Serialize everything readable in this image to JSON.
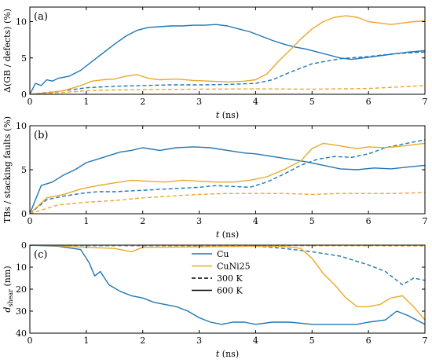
{
  "colors": {
    "Cu": "#1f77b4",
    "CuNi25": "#e8a92b"
  },
  "legend": {
    "items": [
      {
        "label": "Cu",
        "style": "color-Cu"
      },
      {
        "label": "CuNi25",
        "style": "color-CuNi25"
      },
      {
        "label": "300 K",
        "style": "dashed"
      },
      {
        "label": "600 K",
        "style": "solid"
      }
    ],
    "placement": "bottom-panel-center"
  },
  "chart_data": [
    {
      "type": "line",
      "panel_label": "(a)",
      "xlabel_var": "t",
      "xlabel_unit": " (ns)",
      "ylabel": "Δ(GB / defects) (%)",
      "xlim": [
        0,
        7
      ],
      "ylim": [
        0,
        12
      ],
      "invert_y": false,
      "xticks": [
        "0",
        "1",
        "2",
        "3",
        "4",
        "5",
        "6",
        "7"
      ],
      "yticks": [
        {
          "v": 0,
          "t": "0"
        },
        {
          "v": 5,
          "t": "5"
        },
        {
          "v": 10,
          "t": "10"
        }
      ],
      "series": [
        {
          "material": "Cu",
          "temp": "600 K",
          "x": [
            0,
            0.1,
            0.2,
            0.3,
            0.4,
            0.5,
            0.7,
            0.9,
            1.1,
            1.3,
            1.5,
            1.7,
            1.9,
            2.1,
            2.3,
            2.5,
            2.7,
            2.9,
            3.1,
            3.3,
            3.5,
            3.7,
            3.9,
            4.1,
            4.3,
            4.5,
            4.7,
            4.9,
            5.1,
            5.3,
            5.5,
            5.7,
            5.9,
            6.1,
            6.3,
            6.5,
            6.7,
            7.0
          ],
          "y": [
            0,
            1.5,
            1.2,
            2.0,
            1.8,
            2.2,
            2.5,
            3.3,
            4.5,
            5.7,
            6.9,
            8.0,
            8.8,
            9.2,
            9.3,
            9.4,
            9.4,
            9.5,
            9.5,
            9.6,
            9.4,
            9.0,
            8.6,
            8.0,
            7.4,
            6.9,
            6.5,
            6.2,
            5.8,
            5.4,
            5.0,
            4.8,
            5.0,
            5.2,
            5.4,
            5.6,
            5.8,
            6.0
          ]
        },
        {
          "material": "CuNi25",
          "temp": "600 K",
          "x": [
            0,
            0.3,
            0.6,
            0.9,
            1.1,
            1.3,
            1.5,
            1.7,
            1.9,
            2.1,
            2.3,
            2.6,
            2.9,
            3.2,
            3.5,
            3.8,
            4.0,
            4.2,
            4.4,
            4.6,
            4.8,
            5.0,
            5.2,
            5.4,
            5.6,
            5.8,
            6.0,
            6.2,
            6.4,
            6.6,
            6.8,
            7.0
          ],
          "y": [
            0,
            0.2,
            0.5,
            1.2,
            1.8,
            2.0,
            2.1,
            2.5,
            2.7,
            2.2,
            2.0,
            2.1,
            1.9,
            1.8,
            1.7,
            1.8,
            2.0,
            2.8,
            4.5,
            6.0,
            7.6,
            9.0,
            10.0,
            10.6,
            10.8,
            10.6,
            10.0,
            9.8,
            9.6,
            9.8,
            10.0,
            10.1
          ]
        },
        {
          "material": "Cu",
          "temp": "300 K",
          "x": [
            0,
            0.5,
            1.0,
            1.5,
            2.0,
            2.5,
            3.0,
            3.5,
            4.0,
            4.3,
            4.6,
            5.0,
            5.5,
            6.0,
            6.5,
            7.0
          ],
          "y": [
            0,
            0.4,
            0.9,
            1.1,
            1.2,
            1.3,
            1.3,
            1.35,
            1.5,
            2.0,
            3.0,
            4.2,
            4.9,
            5.2,
            5.6,
            5.8
          ]
        },
        {
          "material": "CuNi25",
          "temp": "300 K",
          "x": [
            0,
            0.5,
            1.0,
            1.5,
            2.0,
            3.0,
            4.0,
            5.0,
            6.0,
            6.5,
            7.0
          ],
          "y": [
            0,
            0.2,
            0.5,
            0.6,
            0.65,
            0.7,
            0.75,
            0.7,
            0.8,
            1.0,
            1.2
          ]
        }
      ]
    },
    {
      "type": "line",
      "panel_label": "(b)",
      "xlabel_var": "t",
      "xlabel_unit": " (ns)",
      "ylabel": "TBs / stacking faults (%)",
      "xlim": [
        0,
        7
      ],
      "ylim": [
        0,
        10
      ],
      "invert_y": false,
      "xticks": [
        "0",
        "1",
        "2",
        "3",
        "4",
        "5",
        "6",
        "7"
      ],
      "yticks": [
        {
          "v": 0,
          "t": "0"
        },
        {
          "v": 5,
          "t": "5"
        },
        {
          "v": 10,
          "t": "10"
        }
      ],
      "series": [
        {
          "material": "Cu",
          "temp": "600 K",
          "x": [
            0,
            0.2,
            0.4,
            0.6,
            0.8,
            1.0,
            1.2,
            1.4,
            1.6,
            1.8,
            2.0,
            2.3,
            2.6,
            2.9,
            3.2,
            3.5,
            3.8,
            4.0,
            4.3,
            4.6,
            4.9,
            5.2,
            5.5,
            5.8,
            6.1,
            6.4,
            6.7,
            7.0
          ],
          "y": [
            0,
            3.2,
            3.6,
            4.4,
            5.0,
            5.8,
            6.2,
            6.6,
            7.0,
            7.2,
            7.5,
            7.2,
            7.5,
            7.6,
            7.5,
            7.2,
            6.9,
            6.8,
            6.5,
            6.2,
            5.9,
            5.5,
            5.1,
            5.0,
            5.2,
            5.1,
            5.3,
            5.5
          ]
        },
        {
          "material": "CuNi25",
          "temp": "600 K",
          "x": [
            0,
            0.3,
            0.6,
            0.9,
            1.2,
            1.5,
            1.8,
            2.1,
            2.4,
            2.7,
            3.0,
            3.3,
            3.6,
            3.9,
            4.2,
            4.5,
            4.8,
            5.0,
            5.2,
            5.4,
            5.6,
            5.8,
            6.0,
            6.3,
            6.6,
            7.0
          ],
          "y": [
            0,
            1.8,
            2.2,
            2.8,
            3.2,
            3.5,
            3.8,
            3.7,
            3.6,
            3.8,
            3.7,
            3.6,
            3.6,
            3.8,
            4.2,
            5.0,
            6.0,
            7.4,
            8.0,
            7.8,
            7.6,
            7.4,
            7.6,
            7.5,
            7.7,
            8.0
          ]
        },
        {
          "material": "Cu",
          "temp": "300 K",
          "x": [
            0,
            0.3,
            0.6,
            0.9,
            1.2,
            1.5,
            1.8,
            2.1,
            2.4,
            2.7,
            3.0,
            3.3,
            3.6,
            3.9,
            4.2,
            4.5,
            4.8,
            5.1,
            5.4,
            5.7,
            6.0,
            6.3,
            6.6,
            7.0
          ],
          "y": [
            0,
            1.6,
            2.0,
            2.3,
            2.5,
            2.5,
            2.6,
            2.7,
            2.8,
            2.9,
            3.0,
            3.2,
            3.1,
            3.0,
            3.6,
            4.5,
            5.5,
            6.2,
            6.5,
            6.4,
            6.8,
            7.5,
            7.9,
            8.4
          ]
        },
        {
          "material": "CuNi25",
          "temp": "300 K",
          "x": [
            0,
            0.5,
            1.0,
            1.5,
            2.0,
            2.5,
            3.0,
            3.5,
            4.0,
            4.5,
            5.0,
            5.5,
            6.0,
            6.5,
            7.0
          ],
          "y": [
            0,
            1.0,
            1.3,
            1.5,
            1.8,
            2.0,
            2.2,
            2.3,
            2.3,
            2.3,
            2.2,
            2.3,
            2.3,
            2.3,
            2.4
          ]
        }
      ]
    },
    {
      "type": "line",
      "panel_label": "(c)",
      "xlabel_var": "t",
      "xlabel_unit": " (ns)",
      "ylabel_var": "d",
      "ylabel_sub": "shear",
      "ylabel_unit": " (nm)",
      "xlim": [
        0,
        7
      ],
      "ylim": [
        0,
        40
      ],
      "invert_y": true,
      "xticks": [
        "0",
        "1",
        "2",
        "3",
        "4",
        "5",
        "6",
        "7"
      ],
      "yticks": [
        {
          "v": 0,
          "t": "0"
        },
        {
          "v": 10,
          "t": "10"
        },
        {
          "v": 20,
          "t": "20"
        },
        {
          "v": 30,
          "t": "30"
        },
        {
          "v": 40,
          "t": "40"
        }
      ],
      "series": [
        {
          "material": "Cu",
          "temp": "600 K",
          "x": [
            0,
            0.5,
            0.9,
            1.05,
            1.15,
            1.25,
            1.4,
            1.6,
            1.8,
            2.0,
            2.2,
            2.4,
            2.6,
            2.8,
            3.0,
            3.2,
            3.4,
            3.6,
            3.8,
            4.0,
            4.3,
            4.6,
            5.0,
            5.4,
            5.8,
            6.0,
            6.3,
            6.5,
            6.7,
            7.0
          ],
          "y": [
            0,
            0.5,
            2,
            8,
            14,
            12,
            18,
            21,
            23,
            24,
            26,
            27,
            28,
            30,
            33,
            35,
            36,
            35,
            35,
            36,
            35,
            35,
            36,
            36,
            36,
            35,
            34,
            30,
            32,
            36
          ]
        },
        {
          "material": "CuNi25",
          "temp": "600 K",
          "x": [
            0,
            0.5,
            1.0,
            1.5,
            1.8,
            2.0,
            3.0,
            4.0,
            4.5,
            4.8,
            5.0,
            5.2,
            5.4,
            5.6,
            5.8,
            6.0,
            6.2,
            6.4,
            6.6,
            6.8,
            7.0
          ],
          "y": [
            0,
            0.3,
            1.0,
            1.5,
            3.0,
            1.0,
            0.8,
            0.5,
            0.6,
            1.5,
            6,
            13,
            18,
            24,
            28,
            28,
            27,
            24,
            23,
            28,
            34
          ]
        },
        {
          "material": "Cu",
          "temp": "300 K",
          "x": [
            0,
            1.0,
            2.0,
            3.0,
            4.0,
            4.5,
            5.0,
            5.5,
            6.0,
            6.3,
            6.6,
            6.8,
            7.0
          ],
          "y": [
            0,
            0.2,
            0.3,
            0.3,
            0.4,
            1.5,
            3,
            5,
            9,
            12,
            18,
            15,
            16
          ]
        },
        {
          "material": "CuNi25",
          "temp": "300 K",
          "x": [
            0,
            2.0,
            4.0,
            5.0,
            6.0,
            7.0
          ],
          "y": [
            0,
            0.2,
            0.2,
            0.3,
            0.3,
            0.4
          ]
        }
      ]
    }
  ]
}
